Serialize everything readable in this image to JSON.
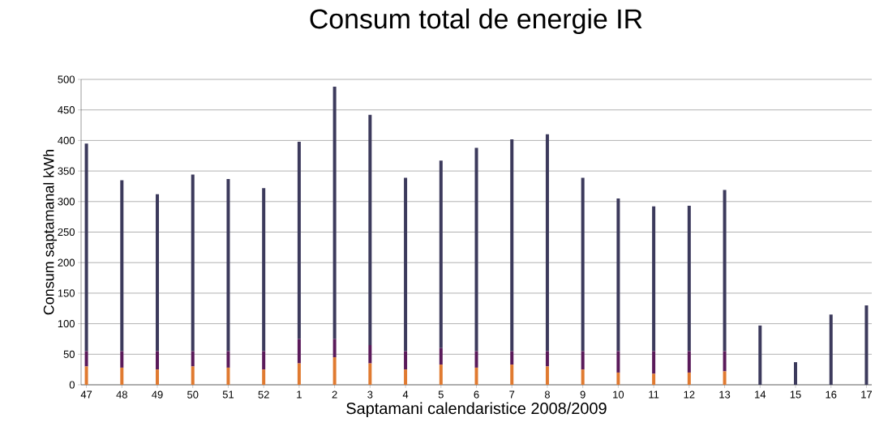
{
  "chart_data": {
    "type": "bar",
    "title": "Consum total de energie IR",
    "xlabel": "Saptamani calendaristice  2008/2009",
    "ylabel": "Consum saptamanal kWh",
    "categories": [
      "47",
      "48",
      "49",
      "50",
      "51",
      "52",
      "1",
      "2",
      "3",
      "4",
      "5",
      "6",
      "7",
      "8",
      "9",
      "10",
      "11",
      "12",
      "13",
      "14",
      "15",
      "16",
      "17"
    ],
    "stacked": true,
    "series": [
      {
        "color": "#e07a30",
        "values": [
          30,
          28,
          25,
          30,
          28,
          25,
          35,
          45,
          35,
          25,
          33,
          28,
          33,
          30,
          25,
          20,
          18,
          20,
          22,
          0,
          0,
          0,
          0
        ]
      },
      {
        "color": "#5a1a5a",
        "values": [
          25,
          27,
          30,
          25,
          27,
          30,
          40,
          30,
          30,
          30,
          27,
          27,
          22,
          25,
          30,
          35,
          37,
          35,
          33,
          0,
          0,
          0,
          0
        ]
      },
      {
        "color": "#3c3a5c",
        "values": [
          340,
          280,
          257,
          289,
          282,
          267,
          323,
          413,
          377,
          284,
          307,
          333,
          347,
          355,
          284,
          250,
          237,
          238,
          264,
          97,
          37,
          115,
          130
        ]
      }
    ],
    "ylim": [
      0,
      500
    ],
    "yticks": [
      0,
      50,
      100,
      150,
      200,
      250,
      300,
      350,
      400,
      450,
      500
    ],
    "grid": "y"
  }
}
